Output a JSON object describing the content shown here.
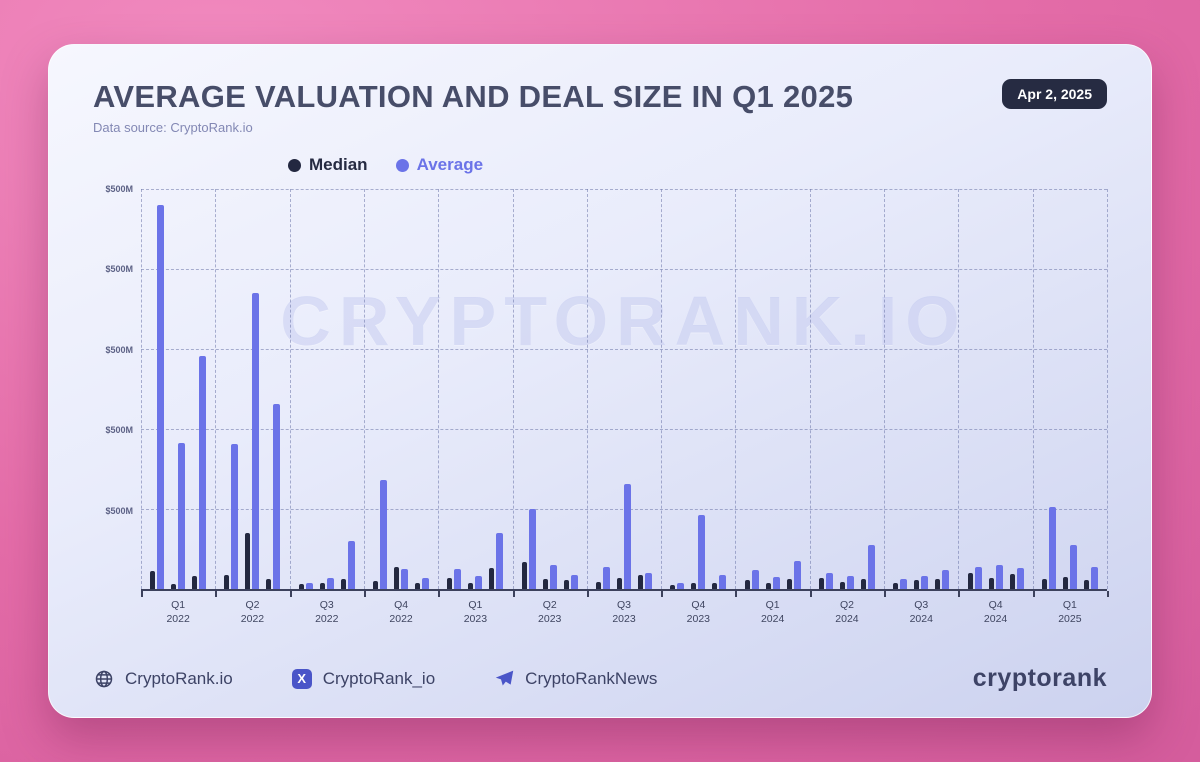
{
  "header": {
    "title": "AVERAGE VALUATION AND DEAL SIZE IN Q1 2025",
    "subtitle": "Data source: CryptoRank.io",
    "date_badge": "Apr 2, 2025"
  },
  "watermark": "CRYPTORANK.IO",
  "footer": {
    "links": [
      {
        "icon": "globe-icon",
        "label": "CryptoRank.io"
      },
      {
        "icon": "x-icon",
        "label": "CryptoRank_io"
      },
      {
        "icon": "telegram-icon",
        "label": "CryptoRankNews"
      }
    ],
    "logo": "cryptorank"
  },
  "chart_data": {
    "type": "bar",
    "title": "AVERAGE VALUATION AND DEAL SIZE IN Q1 2025",
    "legend": [
      "Median",
      "Average"
    ],
    "colors": {
      "median": "#232840",
      "average": "#6b73e8"
    },
    "y_ticks": [
      "$500M",
      "$500M",
      "$500M",
      "$500M",
      "$500M"
    ],
    "ylim": [
      0,
      500
    ],
    "unit": "$M",
    "grid": "dashed",
    "groups": [
      {
        "quarter": "Q1",
        "year": "2022",
        "pairs": [
          [
            22,
            478
          ],
          [
            6,
            182
          ],
          [
            16,
            290
          ]
        ]
      },
      {
        "quarter": "Q2",
        "year": "2022",
        "pairs": [
          [
            18,
            180
          ],
          [
            70,
            368
          ],
          [
            12,
            230
          ]
        ]
      },
      {
        "quarter": "Q3",
        "year": "2022",
        "pairs": [
          [
            6,
            8
          ],
          [
            7,
            14
          ],
          [
            13,
            60
          ]
        ]
      },
      {
        "quarter": "Q4",
        "year": "2022",
        "pairs": [
          [
            10,
            135
          ],
          [
            28,
            25
          ],
          [
            8,
            14
          ]
        ]
      },
      {
        "quarter": "Q1",
        "year": "2023",
        "pairs": [
          [
            14,
            25
          ],
          [
            8,
            16
          ],
          [
            26,
            70
          ]
        ]
      },
      {
        "quarter": "Q2",
        "year": "2023",
        "pairs": [
          [
            33,
            100
          ],
          [
            12,
            30
          ],
          [
            11,
            18
          ]
        ]
      },
      {
        "quarter": "Q3",
        "year": "2023",
        "pairs": [
          [
            9,
            28
          ],
          [
            14,
            130
          ],
          [
            17,
            20
          ]
        ]
      },
      {
        "quarter": "Q4",
        "year": "2023",
        "pairs": [
          [
            5,
            8
          ],
          [
            7,
            92
          ],
          [
            8,
            18
          ]
        ]
      },
      {
        "quarter": "Q1",
        "year": "2024",
        "pairs": [
          [
            11,
            24
          ],
          [
            8,
            15
          ],
          [
            12,
            35
          ]
        ]
      },
      {
        "quarter": "Q2",
        "year": "2024",
        "pairs": [
          [
            14,
            20
          ],
          [
            9,
            16
          ],
          [
            12,
            55
          ]
        ]
      },
      {
        "quarter": "Q3",
        "year": "2024",
        "pairs": [
          [
            8,
            12
          ],
          [
            11,
            16
          ],
          [
            12,
            24
          ]
        ]
      },
      {
        "quarter": "Q4",
        "year": "2024",
        "pairs": [
          [
            20,
            28
          ],
          [
            14,
            30
          ],
          [
            19,
            26
          ]
        ]
      },
      {
        "quarter": "Q1",
        "year": "2025",
        "pairs": [
          [
            12,
            102
          ],
          [
            15,
            55
          ],
          [
            11,
            28
          ]
        ]
      }
    ]
  }
}
